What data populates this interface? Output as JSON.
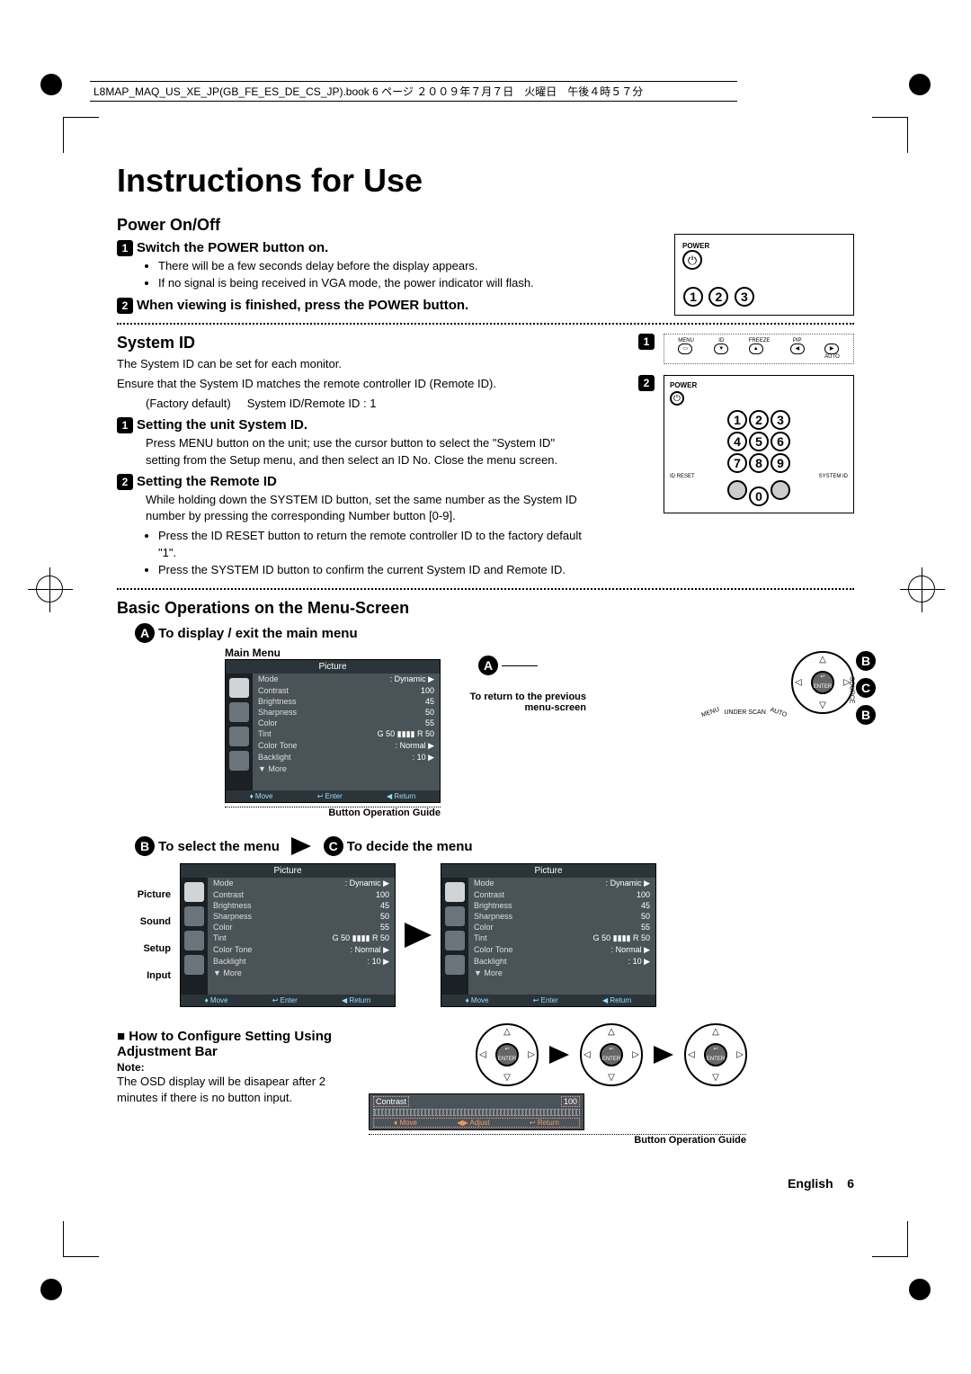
{
  "header": "L8MAP_MAQ_US_XE_JP(GB_FE_ES_DE_CS_JP).book  6 ページ  ２００９年７月７日　火曜日　午後４時５７分",
  "title": "Instructions for Use",
  "power": {
    "heading": "Power On/Off",
    "step1_badge": "1",
    "step1": "Switch the POWER button on.",
    "step1_bullets": [
      "There will be a few seconds delay before the display appears.",
      "If no signal is being received in VGA mode, the power indicator will flash."
    ],
    "step2_badge": "2",
    "step2": "When viewing is finished, press the POWER button.",
    "label_power": "POWER"
  },
  "system_id": {
    "heading": "System ID",
    "line1": "The System ID can be set for each monitor.",
    "line2": "Ensure that the System ID matches the remote controller ID (Remote ID).",
    "defaults_a": "(Factory default)",
    "defaults_b": "System ID/Remote ID : 1",
    "s1_badge": "1",
    "s1_title": "Setting the unit System ID.",
    "s1_body": "Press MENU button on the unit; use the cursor button to select the \"System ID\" setting from the Setup menu, and then select an ID No. Close the menu screen.",
    "s2_badge": "2",
    "s2_title": "Setting the Remote ID",
    "s2_body": "While holding down the SYSTEM ID button, set the same number as the System ID number by pressing the corresponding Number button [0-9].",
    "s2_bullets": [
      "Press the ID RESET button to return the remote controller ID to the factory default \"1\".",
      "Press the SYSTEM ID button to confirm the current System ID and Remote ID."
    ],
    "remote_labels": {
      "menu": "MENU",
      "id": "ID",
      "freeze": "FREEZE",
      "pip": "PIP",
      "auto": "AUTO",
      "idreset": "ID RESET",
      "systemid": "SYSTEM ID"
    }
  },
  "basic_ops": {
    "heading": "Basic Operations on the Menu-Screen",
    "a_title": "To display / exit the main menu",
    "main_menu_label": "Main Menu",
    "return_prev": "To return to the previous menu-screen",
    "bog": "Button Operation Guide",
    "b_title": "To select the menu",
    "c_title": "To decide the menu",
    "side_labels": {
      "picture": "Picture",
      "sound": "Sound",
      "setup": "Setup",
      "input": "Input"
    },
    "config_title": "How to Configure Setting Using Adjustment Bar",
    "note_label": "Note:",
    "note_body": "The OSD display will be disapear after 2 minutes if there is no button input."
  },
  "menu": {
    "title": "Picture",
    "rows": [
      {
        "k": "Mode",
        "v": ": Dynamic     ▶"
      },
      {
        "k": "Contrast",
        "v": "100"
      },
      {
        "k": "Brightness",
        "v": "45"
      },
      {
        "k": "Sharpness",
        "v": "50"
      },
      {
        "k": "Color",
        "v": "55"
      },
      {
        "k": "Tint",
        "v": "G 50 ▮▮▮▮ R   50"
      },
      {
        "k": "Color Tone",
        "v": ": Normal       ▶"
      },
      {
        "k": "Backlight",
        "v": ": 10               ▶"
      },
      {
        "k": "▼ More",
        "v": ""
      }
    ],
    "footer": {
      "move": "♦ Move",
      "enter": "↩ Enter",
      "return": "◀ Return"
    }
  },
  "adj": {
    "label": "Contrast",
    "value": "100",
    "footer": {
      "move": "♦ Move",
      "adjust": "◀▶ Adjust",
      "return": "↩ Return"
    }
  },
  "wheel_labels": {
    "menu": "MENU",
    "under": "UNDER SCAN",
    "auto": "AUTO",
    "source": "SOURCE",
    "enter": "↩\nENTER"
  },
  "footer": {
    "lang": "English",
    "page": "6"
  },
  "colors": {
    "menubg": "#4a5458",
    "menuhdr": "#2b3438",
    "accent": "#9df",
    "adj_accent": "#e96"
  }
}
